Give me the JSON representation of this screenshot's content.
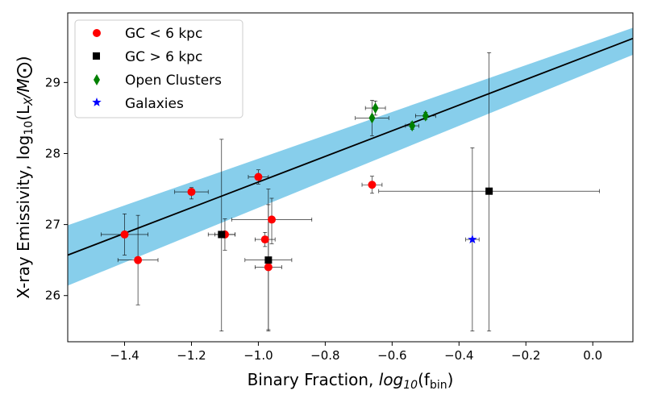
{
  "chart_data": {
    "type": "scatter",
    "xlabel_main": "Binary Fraction, ",
    "xlabel_math": "log",
    "xlabel_sub": "10",
    "xlabel_arg": "(f",
    "xlabel_arg_sub": "bin",
    "xlabel_close": ")",
    "ylabel_main": "X-ray Emissivity, log",
    "ylabel_sub": "10",
    "ylabel_arg": "(L",
    "ylabel_arg_sub": "X",
    "ylabel_tail": "/M",
    "ylabel_sun": "⨀",
    "ylabel_close": ")",
    "xlim": [
      -1.57,
      0.12
    ],
    "ylim": [
      25.35,
      29.98
    ],
    "xticks": [
      -1.4,
      -1.2,
      -1.0,
      -0.8,
      -0.6,
      -0.4,
      -0.2,
      0.0
    ],
    "xtick_labels": [
      "−1.4",
      "−1.2",
      "−1.0",
      "−0.8",
      "−0.6",
      "−0.4",
      "−0.2",
      "0.0"
    ],
    "yticks": [
      26,
      27,
      28,
      29
    ],
    "ytick_labels": [
      "26",
      "27",
      "28",
      "29"
    ],
    "fit": {
      "x": [
        -1.57,
        0.12
      ],
      "y": [
        26.57,
        29.62
      ],
      "band_low": [
        26.14,
        29.39
      ],
      "band_high": [
        26.99,
        29.77
      ],
      "line_color": "#000000",
      "band_color": "#87ceeb"
    },
    "legend": {
      "position": "upper-left",
      "entries": [
        {
          "label": "GC < 6 kpc",
          "marker": "circle",
          "color": "#ff0000"
        },
        {
          "label": "GC > 6 kpc",
          "marker": "square",
          "color": "#000000"
        },
        {
          "label": "Open Clusters",
          "marker": "diamond",
          "color": "#008000"
        },
        {
          "label": "Galaxies",
          "marker": "star",
          "color": "#0000ff"
        }
      ]
    },
    "series": [
      {
        "name": "GC < 6 kpc",
        "marker": "circle",
        "color": "#ff0000",
        "points": [
          {
            "x": -1.4,
            "y": 26.86,
            "xerr": 0.07,
            "yerr_lo": 0.29,
            "yerr_hi": 0.29
          },
          {
            "x": -1.36,
            "y": 26.5,
            "xerr": 0.06,
            "yerr_lo": 0.63,
            "yerr_hi": 0.63
          },
          {
            "x": -1.2,
            "y": 27.46,
            "xerr": 0.05,
            "yerr_lo": 0.1,
            "yerr_hi": 0.06
          },
          {
            "x": -1.1,
            "y": 26.86,
            "xerr": 0.03,
            "yerr_lo": 0.22,
            "yerr_hi": 0.22
          },
          {
            "x": -1.0,
            "y": 27.67,
            "xerr": 0.03,
            "yerr_lo": 0.1,
            "yerr_hi": 0.1
          },
          {
            "x": -0.98,
            "y": 26.79,
            "xerr": 0.03,
            "yerr_lo": 0.1,
            "yerr_hi": 0.1
          },
          {
            "x": -0.96,
            "y": 27.07,
            "xerr": 0.12,
            "yerr_lo": 0.34,
            "yerr_hi": 0.3
          },
          {
            "x": -0.97,
            "y": 26.4,
            "xerr": 0.04,
            "yerr_lo": 0.88,
            "yerr_hi": 0.88
          },
          {
            "x": -0.66,
            "y": 27.56,
            "xerr": 0.03,
            "yerr_lo": 0.12,
            "yerr_hi": 0.12
          }
        ]
      },
      {
        "name": "GC > 6 kpc",
        "marker": "square",
        "color": "#000000",
        "points": [
          {
            "x": -1.11,
            "y": 26.86,
            "xerr": 0.04,
            "yerr_lo": 1.36,
            "yerr_hi": 1.34
          },
          {
            "x": -0.97,
            "y": 26.5,
            "xerr": 0.07,
            "yerr_lo": 1.0,
            "yerr_hi": 1.0
          },
          {
            "x": -0.31,
            "y": 27.47,
            "xerr": 0.33,
            "yerr_lo": 1.97,
            "yerr_hi": 1.95
          }
        ]
      },
      {
        "name": "Open Clusters",
        "marker": "diamond",
        "color": "#008000",
        "points": [
          {
            "x": -0.65,
            "y": 28.64,
            "xerr": 0.03,
            "yerr_lo": 0.1,
            "yerr_hi": 0.1
          },
          {
            "x": -0.66,
            "y": 28.5,
            "xerr": 0.05,
            "yerr_lo": 0.25,
            "yerr_hi": 0.25
          },
          {
            "x": -0.54,
            "y": 28.39,
            "xerr": 0.02,
            "yerr_lo": 0.05,
            "yerr_hi": 0.05
          },
          {
            "x": -0.5,
            "y": 28.53,
            "xerr": 0.03,
            "yerr_lo": 0.05,
            "yerr_hi": 0.05
          }
        ]
      },
      {
        "name": "Galaxies",
        "marker": "star",
        "color": "#0000ff",
        "points": [
          {
            "x": -0.36,
            "y": 26.79,
            "xerr": 0.02,
            "yerr_lo": 1.29,
            "yerr_hi": 1.29
          }
        ]
      }
    ]
  }
}
